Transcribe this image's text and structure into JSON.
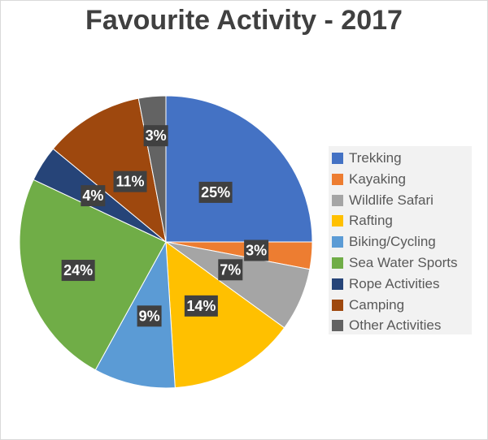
{
  "chart_data": {
    "type": "pie",
    "title": "Favourite Activity - 2017",
    "legend_position": "right",
    "categories": [
      "Trekking",
      "Kayaking",
      "Wildlife Safari",
      "Rafting",
      "Biking/Cycling",
      "Sea Water Sports",
      "Rope Activities",
      "Camping",
      "Other Activities"
    ],
    "values": [
      25,
      3,
      7,
      14,
      9,
      24,
      4,
      11,
      3
    ],
    "labels": [
      "25%",
      "3%",
      "7%",
      "14%",
      "9%",
      "24%",
      "4%",
      "11%",
      "3%"
    ],
    "colors": [
      "#4472c4",
      "#ed7d31",
      "#a5a5a5",
      "#ffc000",
      "#5b9bd5",
      "#70ad47",
      "#264478",
      "#9e480e",
      "#636363"
    ]
  }
}
